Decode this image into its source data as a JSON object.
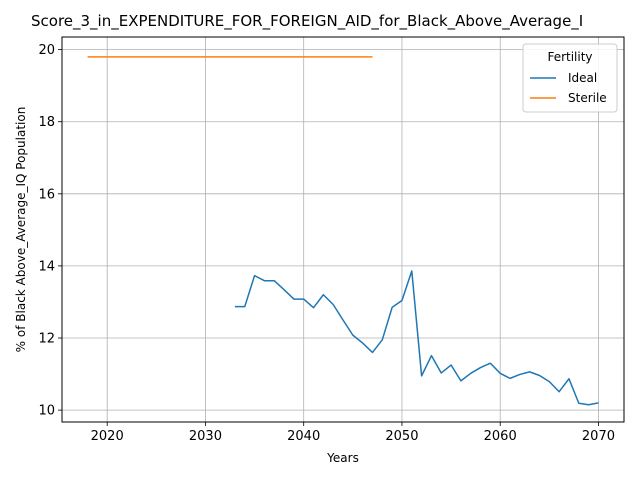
{
  "chart_data": {
    "type": "line",
    "title": "Score_3_in_EXPENDITURE_FOR_FOREIGN_AID_for_Black_Above_Average_I",
    "xlabel": "Years",
    "ylabel": "% of Black Above_Average_IQ Population",
    "xlim": [
      2015.4,
      2072.6
    ],
    "ylim": [
      9.67,
      20.35
    ],
    "xticks": [
      2020,
      2030,
      2040,
      2050,
      2060,
      2070
    ],
    "yticks": [
      10,
      12,
      14,
      16,
      18,
      20
    ],
    "grid": true,
    "legend": {
      "title": "Fertility",
      "placement": "top-right"
    },
    "series": [
      {
        "name": "Ideal",
        "color": "#1f77b4",
        "x": [
          2033,
          2034,
          2035,
          2036,
          2037,
          2038,
          2039,
          2040,
          2041,
          2042,
          2043,
          2044,
          2045,
          2046,
          2047,
          2048,
          2049,
          2050,
          2051,
          2052,
          2053,
          2054,
          2055,
          2056,
          2057,
          2058,
          2059,
          2060,
          2061,
          2062,
          2063,
          2064,
          2065,
          2066,
          2067,
          2068,
          2069,
          2070
        ],
        "y": [
          12.87,
          12.87,
          13.73,
          13.59,
          13.59,
          13.34,
          13.08,
          13.08,
          12.84,
          13.2,
          12.93,
          12.5,
          12.08,
          11.86,
          11.6,
          11.95,
          12.85,
          13.04,
          13.86,
          10.95,
          11.51,
          11.03,
          11.25,
          10.81,
          11.02,
          11.18,
          11.3,
          11.02,
          10.88,
          10.99,
          11.06,
          10.96,
          10.79,
          10.51,
          10.87,
          10.19,
          10.15,
          10.2
        ]
      },
      {
        "name": "Sterile",
        "color": "#ff7f0e",
        "x": [
          2018,
          2047
        ],
        "y": [
          19.8,
          19.8
        ]
      }
    ]
  }
}
